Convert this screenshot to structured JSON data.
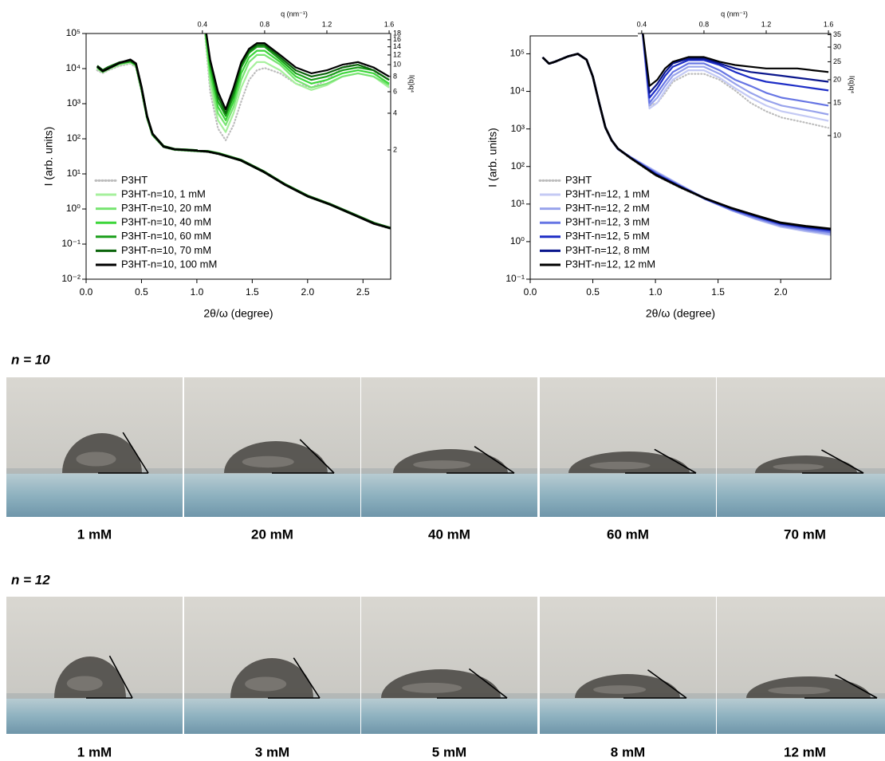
{
  "chart_data": [
    {
      "type": "line",
      "xlabel": "2θ/ω (degree)",
      "ylabel": "I (arb. units)",
      "ylog": true,
      "legend": "lower left",
      "xlim": [
        0,
        2.75
      ],
      "ylim": [
        0.01,
        100000
      ],
      "xticks": [
        {
          "value": 0,
          "label": "0.0"
        },
        0.5,
        {
          "value": 1,
          "label": "1.0"
        },
        1.5,
        {
          "value": 2,
          "label": "2.0"
        },
        2.5
      ],
      "yticks": [
        {
          "value": 0.01,
          "label": "10⁻²"
        },
        {
          "value": 0.1,
          "label": "10⁻¹"
        },
        {
          "value": 1,
          "label": "10⁰"
        },
        {
          "value": 10,
          "label": "10¹"
        },
        {
          "value": 100,
          "label": "10²"
        },
        {
          "value": 1000,
          "label": "10³"
        },
        {
          "value": 10000,
          "label": "10⁴"
        },
        {
          "value": 100000,
          "label": "10⁵"
        }
      ],
      "x": [
        0.1,
        0.15,
        0.2,
        0.3,
        0.4,
        0.45,
        0.5,
        0.55,
        0.6,
        0.7,
        0.8,
        0.9,
        1.0,
        1.1,
        1.2,
        1.4,
        1.6,
        1.8,
        2.0,
        2.2,
        2.4,
        2.6,
        2.75
      ],
      "series": [
        {
          "name": "P3HT",
          "color": "#bdbdbd",
          "dash": "dotted",
          "values": [
            9000,
            7500,
            9000,
            12000,
            14000,
            11000,
            2200,
            380,
            125,
            58,
            48,
            46,
            44,
            42,
            36,
            24,
            11.5,
            4.8,
            2.3,
            1.35,
            0.72,
            0.38,
            0.27
          ]
        },
        {
          "name": "P3HT-n=10, 1 mM",
          "color": "#a6f09c",
          "values": [
            10000,
            8000,
            9500,
            13000,
            15000,
            12000,
            2500,
            400,
            130,
            60,
            50,
            48,
            46,
            44,
            38,
            25,
            12,
            5,
            2.4,
            1.4,
            0.75,
            0.4,
            0.28
          ]
        },
        {
          "name": "P3HT-n=10, 20 mM",
          "color": "#78e472",
          "values": [
            11000,
            8500,
            10000,
            14000,
            16000,
            12500,
            2700,
            420,
            135,
            62,
            51,
            49,
            47,
            45,
            39,
            25,
            12,
            5,
            2.4,
            1.4,
            0.74,
            0.4,
            0.29
          ]
        },
        {
          "name": "P3HT-n=10, 40 mM",
          "color": "#3cd63a",
          "values": [
            11500,
            8700,
            10500,
            14500,
            16500,
            13000,
            2800,
            430,
            135,
            61,
            50,
            48,
            46,
            44,
            38,
            24,
            11.5,
            4.9,
            2.3,
            1.35,
            0.72,
            0.39,
            0.28
          ]
        },
        {
          "name": "P3HT-n=10, 60 mM",
          "color": "#1a9e1a",
          "values": [
            11000,
            8200,
            10000,
            14000,
            16000,
            12800,
            2600,
            410,
            130,
            59,
            49,
            47,
            45,
            43,
            37,
            24,
            11.5,
            4.9,
            2.3,
            1.35,
            0.72,
            0.39,
            0.28
          ]
        },
        {
          "name": "P3HT-n=10, 70 mM",
          "color": "#0b640b",
          "values": [
            12000,
            9000,
            11000,
            15000,
            17000,
            13500,
            2900,
            440,
            140,
            62,
            51,
            49,
            47,
            44,
            38,
            25,
            12,
            5,
            2.4,
            1.4,
            0.75,
            0.4,
            0.29
          ]
        },
        {
          "name": "P3HT-n=10, 100 mM",
          "color": "#000000",
          "values": [
            11500,
            8500,
            10000,
            14500,
            18000,
            14000,
            3000,
            450,
            140,
            60,
            50,
            48,
            46,
            43,
            37,
            24,
            11.5,
            4.8,
            2.3,
            1.35,
            0.72,
            0.38,
            0.28
          ]
        }
      ]
    },
    {
      "type": "line",
      "xlabel": "2θ/ω (degree)",
      "ylabel": "I (arb. units)",
      "ylog": true,
      "legend": "lower left",
      "xlim": [
        0,
        2.4
      ],
      "ylim": [
        0.1,
        300000
      ],
      "xticks": [
        {
          "value": 0,
          "label": "0.0"
        },
        0.5,
        {
          "value": 1,
          "label": "1.0"
        },
        1.5,
        {
          "value": 2,
          "label": "2.0"
        }
      ],
      "yticks": [
        {
          "value": 0.1,
          "label": "10⁻¹"
        },
        {
          "value": 1,
          "label": "10⁰"
        },
        {
          "value": 10,
          "label": "10¹"
        },
        {
          "value": 100,
          "label": "10²"
        },
        {
          "value": 1000,
          "label": "10³"
        },
        {
          "value": 10000,
          "label": "10⁴"
        },
        {
          "value": 100000,
          "label": "10⁵"
        }
      ],
      "x": [
        0.1,
        0.15,
        0.2,
        0.3,
        0.38,
        0.45,
        0.5,
        0.55,
        0.6,
        0.65,
        0.7,
        0.8,
        1.0,
        1.2,
        1.4,
        1.6,
        1.8,
        2.0,
        2.2,
        2.4
      ],
      "series": [
        {
          "name": "P3HT",
          "color": "#bdbdbd",
          "dash": "dotted",
          "values": [
            78000,
            54000,
            60000,
            83000,
            98000,
            68000,
            24000,
            4800,
            1050,
            480,
            290,
            165,
            58,
            27,
            13.5,
            7.5,
            4.7,
            3,
            2.4,
            2
          ]
        },
        {
          "name": "P3HT-n=12, 1 mM",
          "color": "#c4caf4",
          "values": [
            80000,
            55000,
            62000,
            85000,
            100000,
            70000,
            25000,
            5000,
            1100,
            500,
            290,
            180,
            75,
            32,
            14,
            7,
            4,
            2.5,
            1.9,
            1.5
          ]
        },
        {
          "name": "P3HT-n=12, 2 mM",
          "color": "#98a3ec",
          "values": [
            80000,
            55000,
            62000,
            85000,
            100000,
            70000,
            25000,
            5000,
            1100,
            500,
            290,
            178,
            72,
            31,
            13.5,
            7,
            4.1,
            2.6,
            2,
            1.6
          ]
        },
        {
          "name": "P3HT-n=12, 3 mM",
          "color": "#6776e4",
          "values": [
            80000,
            55000,
            62000,
            85000,
            100000,
            70000,
            25000,
            5000,
            1100,
            500,
            295,
            175,
            68,
            30,
            13.5,
            7.3,
            4.4,
            2.8,
            2.2,
            1.8
          ]
        },
        {
          "name": "P3HT-n=12, 5 mM",
          "color": "#1d2dc6",
          "values": [
            80000,
            55000,
            62000,
            85000,
            100000,
            70000,
            25000,
            5000,
            1100,
            500,
            300,
            172,
            64,
            29,
            13.8,
            7.7,
            4.7,
            3,
            2.4,
            2
          ]
        },
        {
          "name": "P3HT-n=12, 8 mM",
          "color": "#0a168c",
          "values": [
            80000,
            55000,
            62000,
            85000,
            100000,
            70000,
            25000,
            5000,
            1100,
            500,
            300,
            171,
            62,
            28.5,
            14,
            7.9,
            4.9,
            3.1,
            2.5,
            2.1
          ]
        },
        {
          "name": "P3HT-n=12, 12 mM",
          "color": "#000000",
          "values": [
            80000,
            55000,
            62000,
            85000,
            100000,
            70000,
            25000,
            5000,
            1100,
            500,
            300,
            170,
            60,
            28,
            14,
            8,
            5,
            3.2,
            2.6,
            2.2
          ]
        }
      ]
    },
    {
      "type": "line",
      "xlabel": "q (nm⁻¹)",
      "ylabel": "I(q)q⁴",
      "ylog": true,
      "xaxis": "top",
      "yaxis": "right",
      "xlim": [
        0.37,
        1.61
      ],
      "ylim": [
        2,
        18
      ],
      "xticks": [
        0.4,
        0.8,
        1.2,
        1.6
      ],
      "yticks": [
        2,
        4,
        6,
        8,
        10,
        12,
        14,
        16,
        18
      ],
      "x": [
        0.4,
        0.45,
        0.5,
        0.55,
        0.6,
        0.65,
        0.7,
        0.75,
        0.8,
        0.9,
        1.0,
        1.1,
        1.2,
        1.3,
        1.4,
        1.5,
        1.6
      ],
      "series": [
        {
          "color": "#bdbdbd",
          "dash": "dotted",
          "values": [
            30,
            6,
            3,
            2.4,
            3.2,
            5,
            7.5,
            9,
            9.4,
            8.5,
            7,
            6.5,
            7.5,
            9.5,
            10.5,
            9,
            6.5
          ]
        },
        {
          "color": "#a6f09c",
          "values": [
            30,
            7,
            3.5,
            2.8,
            4,
            6.5,
            9,
            10.5,
            10.5,
            9,
            7,
            6.2,
            6.8,
            8,
            8.5,
            8,
            6.5
          ]
        },
        {
          "color": "#78e472",
          "values": [
            30,
            8,
            4,
            3.2,
            4.5,
            7.5,
            10.5,
            12,
            12,
            10,
            7.5,
            6.5,
            7,
            8,
            8.5,
            8,
            6.8
          ]
        },
        {
          "color": "#3cd63a",
          "values": [
            30,
            9,
            4.5,
            3.5,
            5,
            8.5,
            11.5,
            13,
            13,
            10.5,
            8,
            7,
            7.5,
            8.5,
            9,
            8.5,
            7
          ]
        },
        {
          "color": "#1a9e1a",
          "values": [
            30,
            10,
            5,
            3.8,
            5.5,
            9.5,
            12.5,
            14,
            14,
            11,
            8.5,
            7.5,
            8,
            9,
            9.5,
            9,
            7.5
          ]
        },
        {
          "color": "#0b640b",
          "values": [
            30,
            10.5,
            5.5,
            4,
            6,
            10,
            13,
            14.5,
            14.5,
            11.5,
            9,
            8,
            8.5,
            9.5,
            10,
            9,
            7.5
          ]
        },
        {
          "color": "#000000",
          "values": [
            30,
            11,
            6,
            4.3,
            6.5,
            10.5,
            13.5,
            15,
            15,
            12,
            9.5,
            8.5,
            9,
            10,
            10.5,
            9.5,
            8
          ]
        }
      ]
    },
    {
      "type": "line",
      "xlabel": "q (nm⁻¹)",
      "ylabel": "I(q)q⁴",
      "ylog": true,
      "xaxis": "top",
      "yaxis": "right",
      "xlim": [
        0.375,
        1.615
      ],
      "ylim": [
        8.2,
        35.5
      ],
      "xticks": [
        0.4,
        0.8,
        1.2,
        1.6
      ],
      "yticks": [
        10,
        15,
        20,
        25,
        30,
        35
      ],
      "x": [
        0.4,
        0.45,
        0.5,
        0.55,
        0.6,
        0.7,
        0.8,
        0.9,
        1.0,
        1.1,
        1.2,
        1.3,
        1.4,
        1.5,
        1.6
      ],
      "series": [
        {
          "color": "#bdbdbd",
          "dash": "dotted",
          "values": [
            40,
            14.5,
            15,
            17,
            19.5,
            21.5,
            21.5,
            20,
            17.5,
            15,
            13.5,
            12.5,
            12,
            11.5,
            11
          ]
        },
        {
          "color": "#c4caf4",
          "values": [
            40,
            14,
            15,
            17.5,
            20,
            22.5,
            22.5,
            20.5,
            18,
            16,
            14.5,
            13.5,
            13,
            12.5,
            12
          ]
        },
        {
          "color": "#98a3ec",
          "values": [
            40,
            14.5,
            16,
            18.5,
            21,
            23.5,
            23.5,
            21.5,
            19,
            17,
            15.5,
            14.5,
            14,
            13.5,
            13
          ]
        },
        {
          "color": "#6776e4",
          "values": [
            40,
            15,
            17,
            19.5,
            22,
            24.5,
            24.5,
            22.5,
            20,
            18.5,
            17,
            16,
            15.5,
            15,
            14.5
          ]
        },
        {
          "color": "#1d2dc6",
          "values": [
            40,
            16,
            18,
            21,
            23.5,
            25.5,
            25.5,
            24,
            22,
            20.5,
            19.5,
            19,
            18.5,
            18,
            17.5
          ]
        },
        {
          "color": "#0a168c",
          "values": [
            40,
            17,
            19,
            22,
            24.5,
            26,
            26,
            24.5,
            23,
            22,
            21.5,
            21,
            20.5,
            20,
            19.5
          ]
        },
        {
          "color": "#000000",
          "values": [
            40,
            18.5,
            20,
            23,
            25,
            26.5,
            26.5,
            25,
            24,
            23.5,
            23,
            23,
            23,
            22.5,
            22
          ]
        }
      ]
    }
  ],
  "photo_rows": [
    {
      "title": "n = 10",
      "labels": [
        "1 mM",
        "20 mM",
        "40 mM",
        "60 mM",
        "70 mM"
      ]
    },
    {
      "title": "n = 12",
      "labels": [
        "1 mM",
        "3 mM",
        "5 mM",
        "8 mM",
        "12 mM"
      ]
    }
  ]
}
